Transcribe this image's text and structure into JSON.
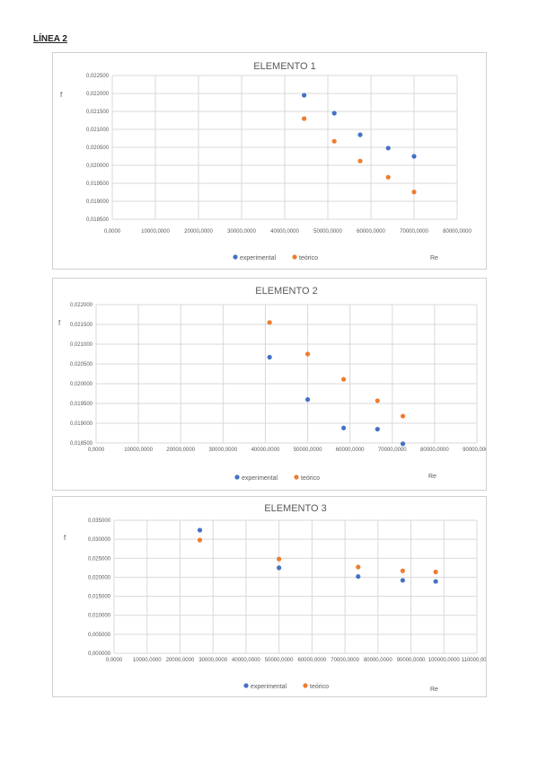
{
  "page": {
    "heading": "LÍNEA 2"
  },
  "colors": {
    "experimental": "#4472C4",
    "teorico": "#ED7D31",
    "grid": "#d9d9d9",
    "text": "#595959"
  },
  "chart_data": [
    {
      "type": "scatter",
      "title": "ELEMENTO 1",
      "ylabel": "f",
      "xlabel": "Re",
      "xlim": [
        0,
        80000
      ],
      "ylim": [
        0.0185,
        0.0225
      ],
      "x_ticks": [
        0,
        10000,
        20000,
        30000,
        40000,
        50000,
        60000,
        70000,
        80000
      ],
      "x_tick_labels": [
        "0,0000",
        "10000,0000",
        "20000,0000",
        "30000,0000",
        "40000,0000",
        "50000,0000",
        "60000,0000",
        "70000,0000",
        "80000,0000"
      ],
      "y_ticks": [
        0.0185,
        0.019,
        0.0195,
        0.02,
        0.0205,
        0.021,
        0.0215,
        0.022,
        0.0225
      ],
      "y_tick_labels": [
        "0,018500",
        "0,019000",
        "0,019500",
        "0,020000",
        "0,020500",
        "0,021000",
        "0,021500",
        "0,022000",
        "0,022500"
      ],
      "legend_position": "bottom",
      "series": [
        {
          "name": "experimental",
          "x": [
            44500,
            51500,
            57500,
            64000,
            70000
          ],
          "y": [
            0.02195,
            0.02145,
            0.02085,
            0.02048,
            0.02025
          ]
        },
        {
          "name": "teórico",
          "x": [
            44500,
            51500,
            57500,
            64000,
            70000
          ],
          "y": [
            0.0213,
            0.02067,
            0.02012,
            0.01967,
            0.01926
          ]
        }
      ]
    },
    {
      "type": "scatter",
      "title": "ELEMENTO 2",
      "ylabel": "f",
      "xlabel": "Re",
      "xlim": [
        0,
        90000
      ],
      "ylim": [
        0.0185,
        0.022
      ],
      "x_ticks": [
        0,
        10000,
        20000,
        30000,
        40000,
        50000,
        60000,
        70000,
        80000,
        90000
      ],
      "x_tick_labels": [
        "0,0000",
        "10000,0000",
        "20000,0000",
        "30000,0000",
        "40000,0000",
        "50000,0000",
        "60000,0000",
        "70000,0000",
        "80000,0000",
        "90000,0000"
      ],
      "y_ticks": [
        0.0185,
        0.019,
        0.0195,
        0.02,
        0.0205,
        0.021,
        0.0215,
        0.022
      ],
      "y_tick_labels": [
        "0,018500",
        "0,019000",
        "0,019500",
        "0,020000",
        "0,020500",
        "0,021000",
        "0,021500",
        "0,022000"
      ],
      "legend_position": "bottom",
      "series": [
        {
          "name": "experimental",
          "x": [
            41000,
            50000,
            58500,
            66500,
            72500
          ],
          "y": [
            0.02067,
            0.0196,
            0.01888,
            0.01885,
            0.01848
          ]
        },
        {
          "name": "teórico",
          "x": [
            41000,
            50000,
            58500,
            66500,
            72500
          ],
          "y": [
            0.02155,
            0.02075,
            0.02011,
            0.01957,
            0.01918
          ]
        }
      ]
    },
    {
      "type": "scatter",
      "title": "ELEMENTO 3",
      "ylabel": "f",
      "xlabel": "Re",
      "xlim": [
        0,
        110000
      ],
      "ylim": [
        0,
        0.035
      ],
      "x_ticks": [
        0,
        10000,
        20000,
        30000,
        40000,
        50000,
        60000,
        70000,
        80000,
        90000,
        100000,
        110000
      ],
      "x_tick_labels": [
        "0,0000",
        "10000,0000",
        "20000,0000",
        "30000,0000",
        "40000,0000",
        "50000,0000",
        "60000,0000",
        "70000,0000",
        "80000,0000",
        "90000,0000",
        "100000,0000",
        "110000,0000"
      ],
      "y_ticks": [
        0,
        0.005,
        0.01,
        0.015,
        0.02,
        0.025,
        0.03,
        0.035
      ],
      "y_tick_labels": [
        "0,000000",
        "0,005000",
        "0,010000",
        "0,015000",
        "0,020000",
        "0,025000",
        "0,030000",
        "0,035000"
      ],
      "legend_position": "bottom",
      "series": [
        {
          "name": "experimental",
          "x": [
            26000,
            50000,
            74000,
            87500,
            97500
          ],
          "y": [
            0.0324,
            0.0225,
            0.0202,
            0.0192,
            0.0189
          ]
        },
        {
          "name": "teórico",
          "x": [
            26000,
            50000,
            74000,
            87500,
            97500
          ],
          "y": [
            0.0298,
            0.0248,
            0.0227,
            0.0217,
            0.0214
          ]
        }
      ]
    }
  ]
}
